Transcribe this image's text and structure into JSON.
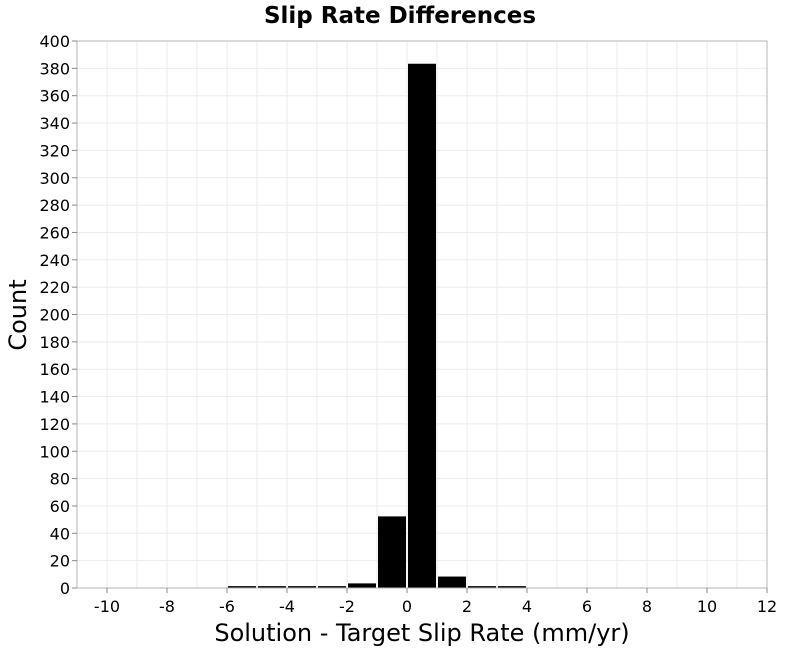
{
  "chart_data": {
    "type": "bar",
    "title": "Slip Rate Differences",
    "xlabel": "Solution - Target Slip Rate (mm/yr)",
    "ylabel": "Count",
    "xlim": [
      -11,
      12
    ],
    "ylim": [
      0,
      400
    ],
    "xticks": [
      -10,
      -8,
      -6,
      -4,
      -2,
      0,
      2,
      4,
      6,
      8,
      10,
      12
    ],
    "yticks": [
      0,
      20,
      40,
      60,
      80,
      100,
      120,
      140,
      160,
      180,
      200,
      220,
      240,
      260,
      280,
      300,
      320,
      340,
      360,
      380,
      400
    ],
    "bin_width": 1,
    "grid": true,
    "legend": "none",
    "bins": [
      {
        "x": -10,
        "count": 0
      },
      {
        "x": -9,
        "count": 0
      },
      {
        "x": -8,
        "count": 0
      },
      {
        "x": -7,
        "count": 0
      },
      {
        "x": -6,
        "count": 0
      },
      {
        "x": -5,
        "count": 1
      },
      {
        "x": -4,
        "count": 1
      },
      {
        "x": -3,
        "count": 1
      },
      {
        "x": -2,
        "count": 1
      },
      {
        "x": -1,
        "count": 3
      },
      {
        "x": 0,
        "count": 52
      },
      {
        "x": 1,
        "count": 383
      },
      {
        "x": 2,
        "count": 8
      },
      {
        "x": 3,
        "count": 1
      },
      {
        "x": 4,
        "count": 1
      },
      {
        "x": 5,
        "count": 0
      },
      {
        "x": 6,
        "count": 0
      },
      {
        "x": 7,
        "count": 0
      },
      {
        "x": 8,
        "count": 0
      },
      {
        "x": 9,
        "count": 0
      },
      {
        "x": 10,
        "count": 0
      },
      {
        "x": 11,
        "count": 0
      },
      {
        "x": 12,
        "count": 0
      }
    ],
    "colors": {
      "bar": "#000000",
      "grid": "#ebebeb",
      "frame": "#b4b4b4"
    }
  }
}
